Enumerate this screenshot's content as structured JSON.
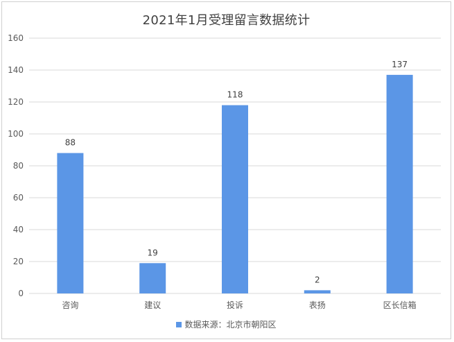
{
  "chart_data": {
    "type": "bar",
    "title": "2021年1月受理留言数据统计",
    "categories": [
      "咨询",
      "建议",
      "投诉",
      "表扬",
      "区长信箱"
    ],
    "series": [
      {
        "name": "数据来源：北京市朝阳区",
        "values": [
          88,
          19,
          118,
          2,
          137
        ],
        "color": "#5b96e6"
      }
    ],
    "ylim": [
      0,
      160
    ],
    "yticks": [
      "0",
      "20",
      "40",
      "60",
      "80",
      "100",
      "120",
      "140",
      "160"
    ],
    "grid": true,
    "legend_position": "bottom",
    "data_labels": [
      "88",
      "19",
      "118",
      "2",
      "137"
    ]
  },
  "colors": {
    "gridline": "#d9d9d9",
    "axis_text": "#595959",
    "bar": "#5b96e6"
  }
}
